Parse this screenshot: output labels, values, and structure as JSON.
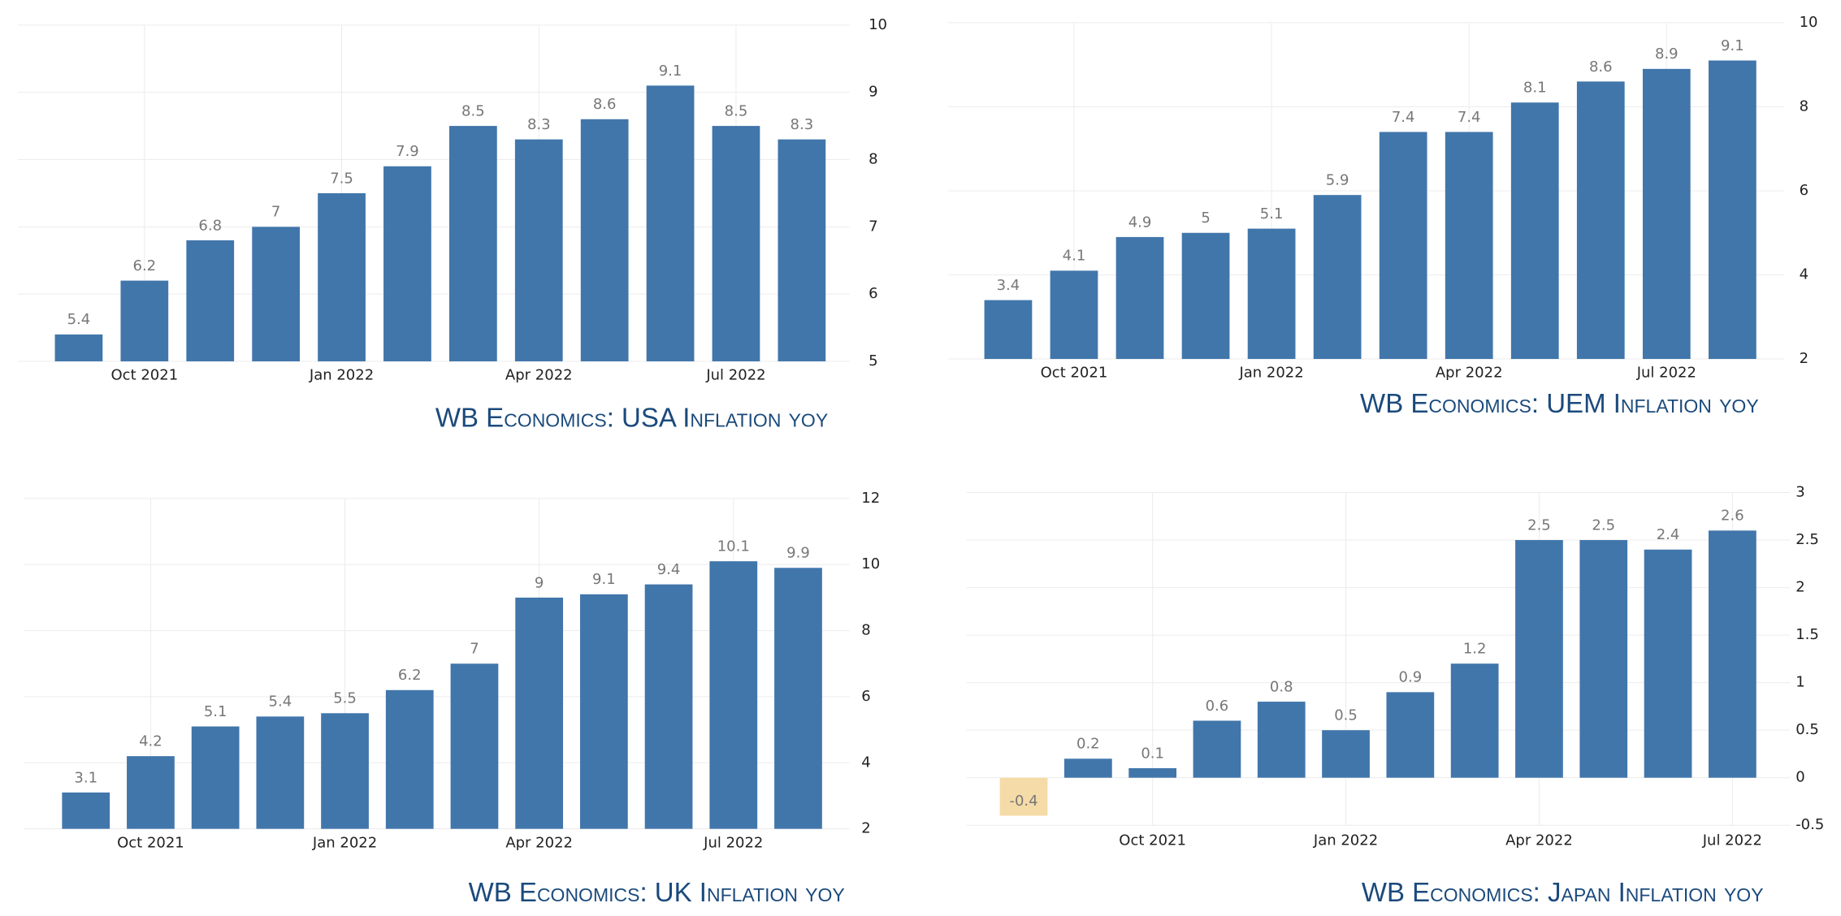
{
  "chart_data": [
    {
      "type": "bar",
      "title": "WB Economics: USA Inflation yoy",
      "categories": [
        null,
        "Oct 2021",
        null,
        null,
        "Jan 2022",
        null,
        null,
        "Apr 2022",
        null,
        null,
        "Jul 2022",
        null
      ],
      "values": [
        5.4,
        6.2,
        6.8,
        7,
        7.5,
        7.9,
        8.5,
        8.3,
        8.6,
        9.1,
        8.5,
        8.3
      ],
      "color": "#4176ab",
      "negative_color": "#f5dba8",
      "ylim": [
        5,
        10
      ],
      "yticks": [
        5,
        6,
        7,
        8,
        9,
        10
      ],
      "grid": true
    },
    {
      "type": "bar",
      "title": "WB Economics: UEM Inflation yoy",
      "categories": [
        null,
        "Oct 2021",
        null,
        null,
        "Jan 2022",
        null,
        null,
        "Apr 2022",
        null,
        null,
        "Jul 2022",
        null
      ],
      "values": [
        3.4,
        4.1,
        4.9,
        5,
        5.1,
        5.9,
        7.4,
        7.4,
        8.1,
        8.6,
        8.9,
        9.1
      ],
      "color": "#4176ab",
      "negative_color": "#f5dba8",
      "ylim": [
        2,
        10
      ],
      "yticks": [
        2,
        4,
        6,
        8,
        10
      ],
      "grid": true
    },
    {
      "type": "bar",
      "title": "WB Economics: UK Inflation yoy",
      "categories": [
        null,
        "Oct 2021",
        null,
        null,
        "Jan 2022",
        null,
        null,
        "Apr 2022",
        null,
        null,
        "Jul 2022",
        null
      ],
      "values": [
        3.1,
        4.2,
        5.1,
        5.4,
        5.5,
        6.2,
        7,
        9,
        9.1,
        9.4,
        10.1,
        9.9
      ],
      "color": "#4176ab",
      "negative_color": "#f5dba8",
      "ylim": [
        2,
        12
      ],
      "yticks": [
        2,
        4,
        6,
        8,
        10,
        12
      ],
      "grid": true
    },
    {
      "type": "bar",
      "title": "WB Economics: Japan Inflation yoy",
      "categories": [
        null,
        null,
        "Oct 2021",
        null,
        null,
        "Jan 2022",
        null,
        null,
        "Apr 2022",
        null,
        null,
        "Jul 2022"
      ],
      "values": [
        -0.4,
        0.2,
        0.1,
        0.6,
        0.8,
        0.5,
        0.9,
        1.2,
        2.5,
        2.5,
        2.4,
        2.6
      ],
      "color": "#4176ab",
      "negative_color": "#f5dba8",
      "ylim": [
        -0.5,
        3
      ],
      "yticks": [
        -0.5,
        0,
        0.5,
        1,
        1.5,
        2,
        2.5,
        3
      ],
      "grid": true
    }
  ]
}
